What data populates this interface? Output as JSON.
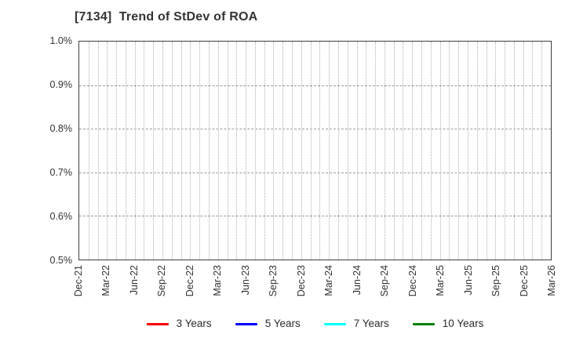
{
  "window": {
    "background": "#ffffff"
  },
  "title": "[7134]  Trend of StDev of ROA",
  "chart_data": {
    "type": "line",
    "title": "[7134]  Trend of StDev of ROA",
    "x_tick_labels": [
      "Dec-21",
      "Mar-22",
      "Jun-22",
      "Sep-22",
      "Dec-22",
      "Mar-23",
      "Jun-23",
      "Sep-23",
      "Dec-23",
      "Mar-24",
      "Jun-24",
      "Sep-24",
      "Dec-24",
      "Mar-25",
      "Jun-25",
      "Sep-25",
      "Dec-25",
      "Mar-26"
    ],
    "x_tick_interval_months": 3,
    "x_minor_grid_interval_months": 1,
    "y_tick_labels": [
      "0.5%",
      "0.6%",
      "0.7%",
      "0.8%",
      "0.9%",
      "1.0%"
    ],
    "ylim": [
      0.5,
      1.0
    ],
    "y_unit": "%",
    "grid": {
      "vertical_style": "dotted",
      "vertical_color": "#b0b0b0",
      "horizontal_style": "dashed",
      "horizontal_color": "#999999"
    },
    "legend_position": "bottom-center",
    "series": [
      {
        "name": "3 Years",
        "color": "#ff0000",
        "values": []
      },
      {
        "name": "5 Years",
        "color": "#0000ff",
        "values": []
      },
      {
        "name": "7 Years",
        "color": "#00ffff",
        "values": []
      },
      {
        "name": "10 Years",
        "color": "#008000",
        "values": []
      }
    ],
    "note": "No data lines are plotted; the plot area shows axes, grid and legend only."
  },
  "colors": {
    "title_text": "#333333",
    "tick_label": "#333333",
    "plot_border": "#3f3f3f"
  }
}
